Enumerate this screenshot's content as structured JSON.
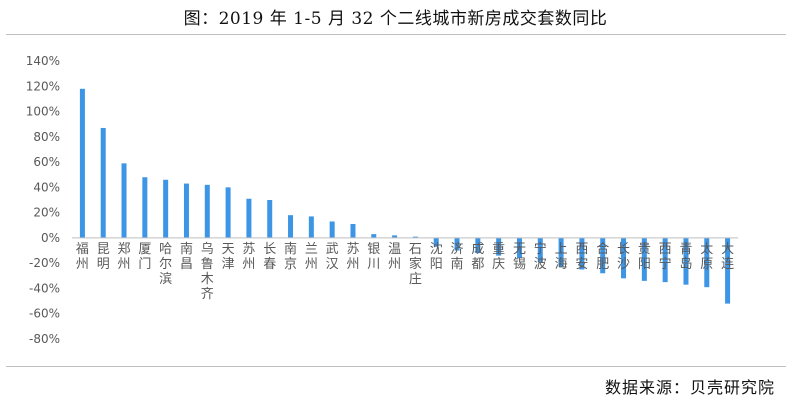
{
  "header": {
    "title": "图：2019 年 1-5 月 32 个二线城市新房成交套数同比"
  },
  "footer": {
    "source": "数据来源：贝壳研究院"
  },
  "chart_data": {
    "type": "bar",
    "title": "图：2019 年 1-5 月 32 个二线城市新房成交套数同比",
    "xlabel": "",
    "ylabel": "",
    "ylim": [
      -80,
      140
    ],
    "yticks": [
      140,
      120,
      100,
      80,
      60,
      40,
      20,
      0,
      -20,
      -40,
      -60,
      -80
    ],
    "ytick_labels": [
      "140%",
      "120%",
      "100%",
      "80%",
      "60%",
      "40%",
      "20%",
      "0%",
      "-20%",
      "-40%",
      "-60%",
      "-80%"
    ],
    "grid": false,
    "legend": "none",
    "bar_color": "#3d95e6",
    "categories": [
      "福州",
      "昆明",
      "郑州",
      "厦门",
      "哈尔滨",
      "南昌",
      "乌鲁木齐",
      "天津",
      "苏州",
      "长春",
      "南京",
      "兰州",
      "武汉",
      "苏州",
      "银川",
      "温州",
      "石家庄",
      "沈阳",
      "济南",
      "成都",
      "重庆",
      "无锡",
      "宁波",
      "上海",
      "西安",
      "合肥",
      "长沙",
      "贵阳",
      "西宁",
      "青岛",
      "太原",
      "大连"
    ],
    "values": [
      118,
      87,
      59,
      48,
      46,
      43,
      42,
      40,
      31,
      30,
      18,
      17,
      13,
      11,
      3,
      2,
      1,
      -7,
      -10,
      -12,
      -14,
      -16,
      -19,
      -23,
      -25,
      -28,
      -32,
      -34,
      -35,
      -37,
      -39,
      -52
    ]
  }
}
